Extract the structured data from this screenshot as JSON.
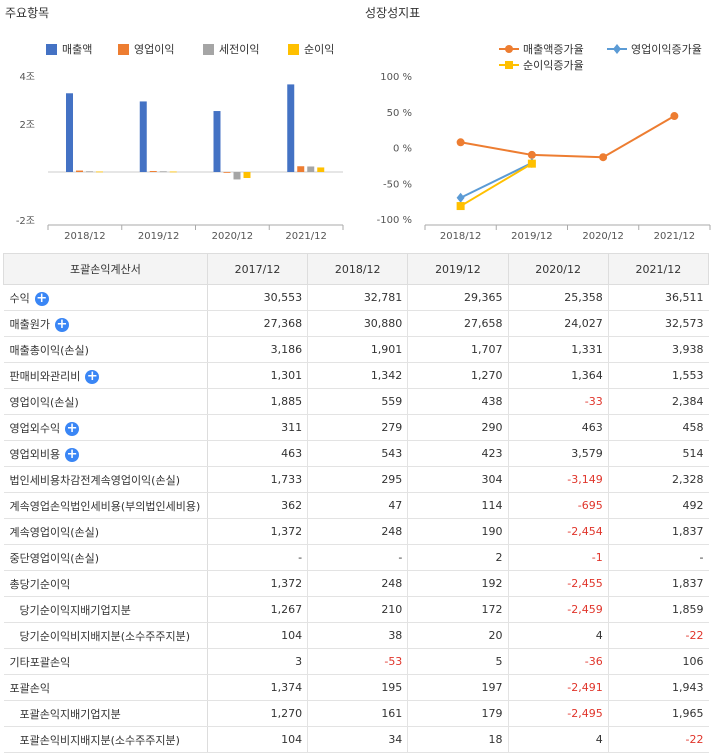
{
  "left_panel": {
    "title": "주요항목"
  },
  "right_panel": {
    "title": "성장성지표"
  },
  "chart_data": [
    {
      "type": "bar",
      "categories": [
        "2018/12",
        "2019/12",
        "2020/12",
        "2021/12"
      ],
      "yticks": [
        "4조",
        "2조",
        "",
        "-2조"
      ],
      "ylim": [
        -2,
        4
      ],
      "series": [
        {
          "name": "매출액",
          "color": "#4472c4",
          "values": [
            3.28,
            2.94,
            2.54,
            3.65
          ]
        },
        {
          "name": "영업이익",
          "color": "#ed7d31",
          "values": [
            0.06,
            0.04,
            -0.003,
            0.24
          ]
        },
        {
          "name": "세전이익",
          "color": "#a5a5a5",
          "values": [
            0.03,
            0.03,
            -0.31,
            0.23
          ]
        },
        {
          "name": "순이익",
          "color": "#ffc000",
          "values": [
            0.02,
            0.02,
            -0.25,
            0.19
          ]
        }
      ]
    },
    {
      "type": "line",
      "categories": [
        "2018/12",
        "2019/12",
        "2020/12",
        "2021/12"
      ],
      "yticks": [
        "100 %",
        "50 %",
        "0 %",
        "-50 %",
        "-100 %"
      ],
      "ylim": [
        -100,
        100
      ],
      "series": [
        {
          "name": "매출액증가율",
          "color": "#ed7d31",
          "marker": "circle",
          "values": [
            7.3,
            -10.4,
            -13.6,
            44.0
          ]
        },
        {
          "name": "영업이익증가율",
          "color": "#5b9bd5",
          "marker": "diamond",
          "values": [
            -70.3,
            -21.6,
            null,
            null
          ]
        },
        {
          "name": "순이익증가율",
          "color": "#ffc000",
          "marker": "square",
          "values": [
            -81.9,
            -22.6,
            null,
            null
          ]
        }
      ]
    }
  ],
  "table": {
    "headers": [
      "포괄손익계산서",
      "2017/12",
      "2018/12",
      "2019/12",
      "2020/12",
      "2021/12"
    ],
    "rows": [
      {
        "label": "수익",
        "plus": "+",
        "indent": false,
        "values": [
          "30,553",
          "32,781",
          "29,365",
          "25,358",
          "36,511"
        ]
      },
      {
        "label": "매출원가",
        "plus": "+",
        "indent": false,
        "values": [
          "27,368",
          "30,880",
          "27,658",
          "24,027",
          "32,573"
        ]
      },
      {
        "label": "매출총이익(손실)",
        "plus": "",
        "indent": false,
        "values": [
          "3,186",
          "1,901",
          "1,707",
          "1,331",
          "3,938"
        ]
      },
      {
        "label": "판매비와관리비",
        "plus": "+",
        "indent": false,
        "values": [
          "1,301",
          "1,342",
          "1,270",
          "1,364",
          "1,553"
        ]
      },
      {
        "label": "영업이익(손실)",
        "plus": "",
        "indent": false,
        "values": [
          "1,885",
          "559",
          "438",
          "-33",
          "2,384"
        ]
      },
      {
        "label": "영업외수익",
        "plus": "+",
        "indent": false,
        "values": [
          "311",
          "279",
          "290",
          "463",
          "458"
        ]
      },
      {
        "label": "영업외비용",
        "plus": "+",
        "indent": false,
        "values": [
          "463",
          "543",
          "423",
          "3,579",
          "514"
        ]
      },
      {
        "label": "법인세비용차감전계속영업이익(손실)",
        "plus": "",
        "indent": false,
        "values": [
          "1,733",
          "295",
          "304",
          "-3,149",
          "2,328"
        ]
      },
      {
        "label": "계속영업손익법인세비용(부의법인세비용)",
        "plus": "",
        "indent": false,
        "values": [
          "362",
          "47",
          "114",
          "-695",
          "492"
        ]
      },
      {
        "label": "계속영업이익(손실)",
        "plus": "",
        "indent": false,
        "values": [
          "1,372",
          "248",
          "190",
          "-2,454",
          "1,837"
        ]
      },
      {
        "label": "중단영업이익(손실)",
        "plus": "",
        "indent": false,
        "values": [
          "-",
          "-",
          "2",
          "-1",
          "-"
        ]
      },
      {
        "label": "총당기순이익",
        "plus": "",
        "indent": false,
        "values": [
          "1,372",
          "248",
          "192",
          "-2,455",
          "1,837"
        ]
      },
      {
        "label": "당기순이익지배기업지분",
        "plus": "",
        "indent": true,
        "values": [
          "1,267",
          "210",
          "172",
          "-2,459",
          "1,859"
        ]
      },
      {
        "label": "당기순이익비지배지분(소수주주지분)",
        "plus": "",
        "indent": true,
        "values": [
          "104",
          "38",
          "20",
          "4",
          "-22"
        ]
      },
      {
        "label": "기타포괄손익",
        "plus": "",
        "indent": false,
        "values": [
          "3",
          "-53",
          "5",
          "-36",
          "106"
        ]
      },
      {
        "label": "포괄손익",
        "plus": "",
        "indent": false,
        "values": [
          "1,374",
          "195",
          "197",
          "-2,491",
          "1,943"
        ]
      },
      {
        "label": "포괄손익지배기업지분",
        "plus": "",
        "indent": true,
        "values": [
          "1,270",
          "161",
          "179",
          "-2,495",
          "1,965"
        ]
      },
      {
        "label": "포괄손익비지배지분(소수주주지분)",
        "plus": "",
        "indent": true,
        "values": [
          "104",
          "34",
          "18",
          "4",
          "-22"
        ]
      }
    ]
  }
}
